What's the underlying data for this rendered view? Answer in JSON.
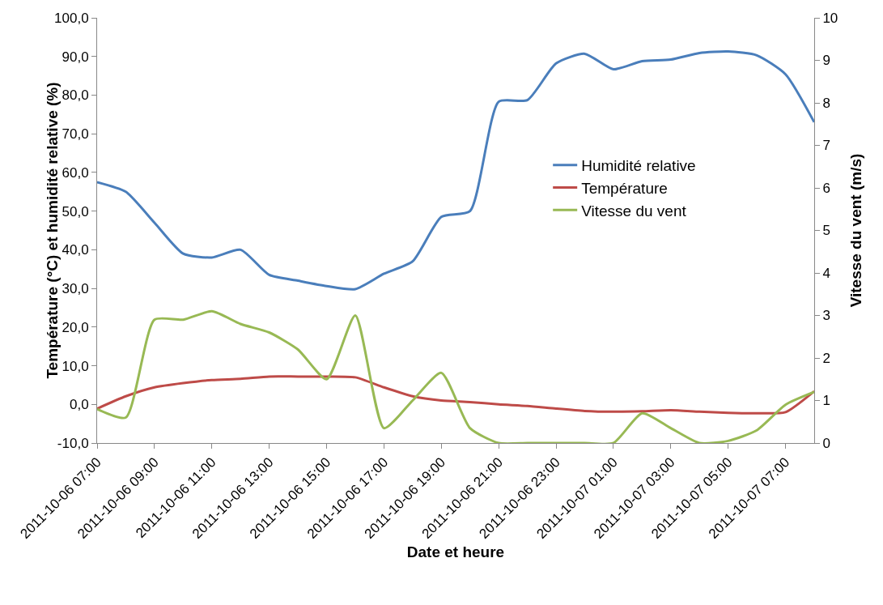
{
  "chart_data": {
    "type": "line",
    "xlabel": "Date et heure",
    "ylabel": "Température (°C) et humidité relative (%)",
    "y2label": "Vitesse du vent (m/s)",
    "x": [
      "2011-10-06T07:00",
      "2011-10-06T08:00",
      "2011-10-06T09:00",
      "2011-10-06T10:00",
      "2011-10-06T11:00",
      "2011-10-06T12:00",
      "2011-10-06T13:00",
      "2011-10-06T14:00",
      "2011-10-06T15:00",
      "2011-10-06T16:00",
      "2011-10-06T17:00",
      "2011-10-06T18:00",
      "2011-10-06T19:00",
      "2011-10-06T20:00",
      "2011-10-06T21:00",
      "2011-10-06T22:00",
      "2011-10-06T23:00",
      "2011-10-07T00:00",
      "2011-10-07T01:00",
      "2011-10-07T02:00",
      "2011-10-07T03:00",
      "2011-10-07T04:00",
      "2011-10-07T05:00",
      "2011-10-07T06:00",
      "2011-10-07T07:00",
      "2011-10-07T08:00"
    ],
    "series": [
      {
        "name": "Humidité relative",
        "color": "#4a7ebb",
        "values": [
          57.5,
          55,
          47,
          39,
          38,
          40,
          33.5,
          32,
          30.6,
          29.8,
          33.8,
          37,
          48.5,
          50,
          78.3,
          78.7,
          88.2,
          90.7,
          86.7,
          88.8,
          89.2,
          90.9,
          91.3,
          90.3,
          85.4,
          73
        ]
      },
      {
        "name": "Température",
        "color": "#be4b48",
        "values": [
          -1.1,
          2.1,
          4.4,
          5.5,
          6.3,
          6.6,
          7.2,
          7.2,
          7.2,
          7,
          4.4,
          2.1,
          1,
          0.6,
          0,
          -0.4,
          -1.1,
          -1.7,
          -1.9,
          -1.8,
          -1.5,
          -1.9,
          -2.2,
          -2.3,
          -2,
          3.4
        ]
      },
      {
        "name": "Vitesse du vent",
        "color": "#98b954",
        "axis": "y2",
        "values": [
          0.8,
          0.6,
          2.9,
          2.9,
          3.1,
          2.8,
          2.6,
          2.2,
          1.5,
          3,
          0.35,
          1,
          1.65,
          0.35,
          0,
          0,
          0,
          0,
          0,
          0.7,
          0.35,
          0,
          0.05,
          0.3,
          0.9,
          1.2
        ]
      }
    ],
    "xlim": [
      "2011-10-06T07:00",
      "2011-10-07T08:00"
    ],
    "xticks": [
      {
        "value": "2011-10-06T07:00",
        "label": "2011-10-06 07:00"
      },
      {
        "value": "2011-10-06T09:00",
        "label": "2011-10-06 09:00"
      },
      {
        "value": "2011-10-06T11:00",
        "label": "2011-10-06 11:00"
      },
      {
        "value": "2011-10-06T13:00",
        "label": "2011-10-06 13:00"
      },
      {
        "value": "2011-10-06T15:00",
        "label": "2011-10-06 15:00"
      },
      {
        "value": "2011-10-06T17:00",
        "label": "2011-10-06 17:00"
      },
      {
        "value": "2011-10-06T19:00",
        "label": "2011-10-06 19:00"
      },
      {
        "value": "2011-10-06T21:00",
        "label": "2011-10-06 21:00"
      },
      {
        "value": "2011-10-06T23:00",
        "label": "2011-10-06 23:00"
      },
      {
        "value": "2011-10-07T01:00",
        "label": "2011-10-07 01:00"
      },
      {
        "value": "2011-10-07T03:00",
        "label": "2011-10-07 03:00"
      },
      {
        "value": "2011-10-07T05:00",
        "label": "2011-10-07 05:00"
      },
      {
        "value": "2011-10-07T07:00",
        "label": "2011-10-07 07:00"
      }
    ],
    "ylim": [
      -10,
      100
    ],
    "yticks": [
      {
        "value": -10,
        "label": "-10,0"
      },
      {
        "value": 0,
        "label": "0,0"
      },
      {
        "value": 10,
        "label": "10,0"
      },
      {
        "value": 20,
        "label": "20,0"
      },
      {
        "value": 30,
        "label": "30,0"
      },
      {
        "value": 40,
        "label": "40,0"
      },
      {
        "value": 50,
        "label": "50,0"
      },
      {
        "value": 60,
        "label": "60,0"
      },
      {
        "value": 70,
        "label": "70,0"
      },
      {
        "value": 80,
        "label": "80,0"
      },
      {
        "value": 90,
        "label": "90,0"
      },
      {
        "value": 100,
        "label": "100,0"
      }
    ],
    "y2lim": [
      0,
      10
    ],
    "y2ticks": [
      0,
      1,
      2,
      3,
      4,
      5,
      6,
      7,
      8,
      9,
      10
    ],
    "grid": false,
    "legend": "right",
    "marker": "none",
    "line_style": "solid"
  }
}
